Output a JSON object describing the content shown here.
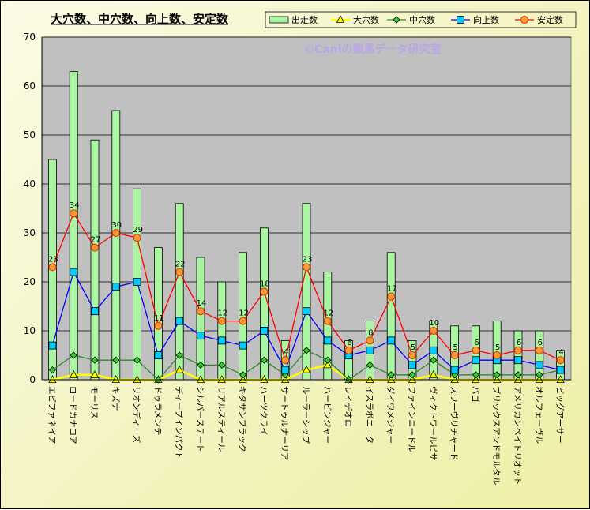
{
  "chart_data": {
    "type": "bar",
    "title": "大穴数、中穴数、向上数、安定数",
    "watermark": "©Caniの競馬データ研究室",
    "ylim": [
      0,
      70
    ],
    "yticks": [
      0,
      10,
      20,
      30,
      40,
      50,
      60,
      70
    ],
    "grid": true,
    "legend_position": "top-right",
    "categories": [
      "エピファネイア",
      "ロードカナロア",
      "モーリス",
      "キズナ",
      "リオンディーズ",
      "ドゥラメンテ",
      "ディープインパクト",
      "シルバーステート",
      "リアルスティール",
      "キタサンブラック",
      "ハーツクライ",
      "サートゥルナーリア",
      "ルーラーシップ",
      "ハービンジャー",
      "レイデオロ",
      "イスラボニータ",
      "ダイワメジャー",
      "ファインニードル",
      "ヴィクトワールピサ",
      "スワーヴリチャード",
      "バゴ",
      "ブリックスアンドモルタル",
      "アメリカンペイトリオット",
      "オルフェーヴル",
      "ビッグアーサー"
    ],
    "series": [
      {
        "name": "出走数",
        "type": "bar",
        "color": "#aaf5a2",
        "values": [
          45,
          63,
          49,
          55,
          39,
          27,
          36,
          25,
          20,
          26,
          31,
          8,
          36,
          22,
          8,
          12,
          26,
          8,
          12,
          11,
          11,
          12,
          10,
          10,
          6
        ]
      },
      {
        "name": "大穴数",
        "type": "line",
        "marker": "triangle",
        "color": "#ffff00",
        "values": [
          0,
          1,
          1,
          0,
          0,
          0,
          2,
          0,
          0,
          0,
          0,
          0,
          2,
          3,
          0,
          0,
          0,
          0,
          1,
          0,
          0,
          0,
          0,
          0,
          0
        ]
      },
      {
        "name": "中穴数",
        "type": "line",
        "marker": "diamond",
        "color": "#2a8a2a",
        "values": [
          2,
          5,
          4,
          4,
          4,
          0,
          5,
          3,
          3,
          1,
          4,
          1,
          6,
          4,
          0,
          3,
          1,
          1,
          4,
          1,
          1,
          1,
          1,
          1,
          2
        ]
      },
      {
        "name": "向上数",
        "type": "line",
        "marker": "square",
        "color": "#0000ff",
        "values": [
          7,
          22,
          14,
          19,
          20,
          5,
          12,
          9,
          8,
          7,
          10,
          2,
          14,
          8,
          5,
          6,
          8,
          3,
          6,
          2,
          4,
          4,
          4,
          3,
          2
        ]
      },
      {
        "name": "安定数",
        "type": "line",
        "marker": "circle",
        "color": "#ff0000",
        "values": [
          23,
          34,
          27,
          30,
          29,
          11,
          22,
          14,
          12,
          12,
          18,
          4,
          23,
          12,
          6,
          8,
          17,
          5,
          10,
          5,
          6,
          5,
          6,
          6,
          4
        ],
        "data_labels": true
      }
    ]
  }
}
